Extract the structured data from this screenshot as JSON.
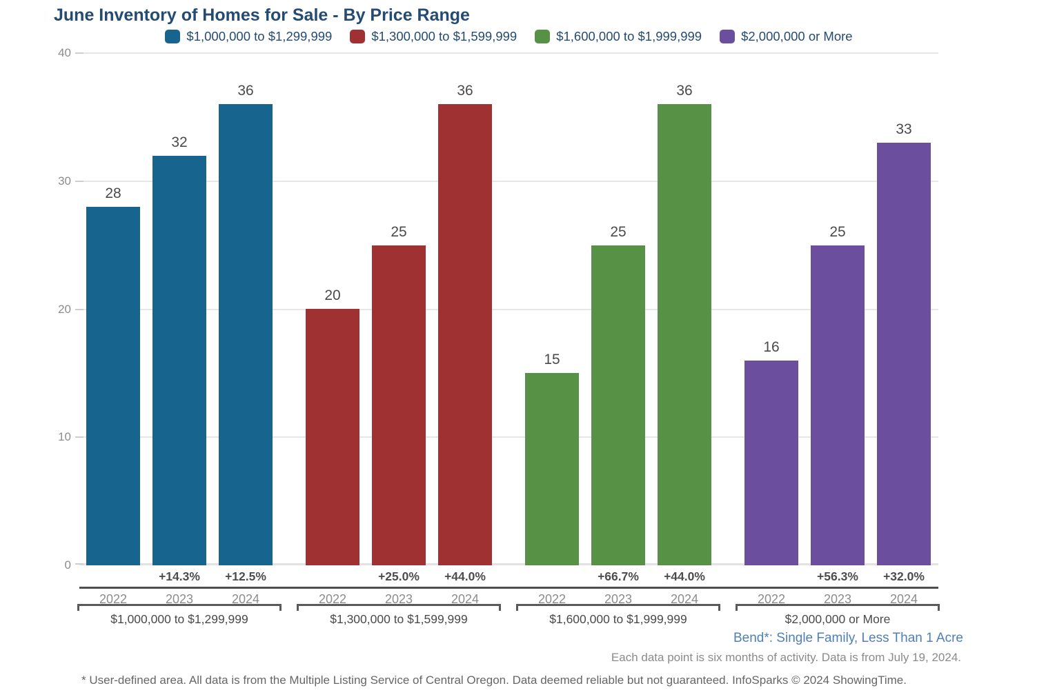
{
  "chart_data": {
    "type": "bar",
    "title": "June Inventory of Homes for Sale - By Price Range",
    "ylim": [
      0,
      40
    ],
    "yticks": [
      0,
      10,
      20,
      30,
      40
    ],
    "grid": true,
    "legend_position": "top",
    "categories": [
      "2022",
      "2023",
      "2024"
    ],
    "series": [
      {
        "name": "$1,000,000 to $1,299,999",
        "color": "#17648F",
        "values": [
          28,
          32,
          36
        ],
        "pct_change": [
          null,
          "+14.3%",
          "+12.5%"
        ]
      },
      {
        "name": "$1,300,000 to $1,599,999",
        "color": "#A03133",
        "values": [
          20,
          25,
          36
        ],
        "pct_change": [
          null,
          "+25.0%",
          "+44.0%"
        ]
      },
      {
        "name": "$1,600,000 to $1,999,999",
        "color": "#579145",
        "values": [
          15,
          25,
          36
        ],
        "pct_change": [
          null,
          "+66.7%",
          "+44.0%"
        ]
      },
      {
        "name": "$2,000,000 or More",
        "color": "#6B4E9E",
        "values": [
          16,
          25,
          33
        ],
        "pct_change": [
          null,
          "+56.3%",
          "+32.0%"
        ]
      }
    ]
  },
  "footer": {
    "area_label": "Bend*: Single Family, Less Than 1 Acre",
    "data_note": "Each data point is six months of activity. Data is from July 19, 2024.",
    "disclaimer": "* User-defined area. All data is from the Multiple Listing Service of Central Oregon. Data deemed reliable but not guaranteed. InfoSparks © 2024 ShowingTime."
  }
}
